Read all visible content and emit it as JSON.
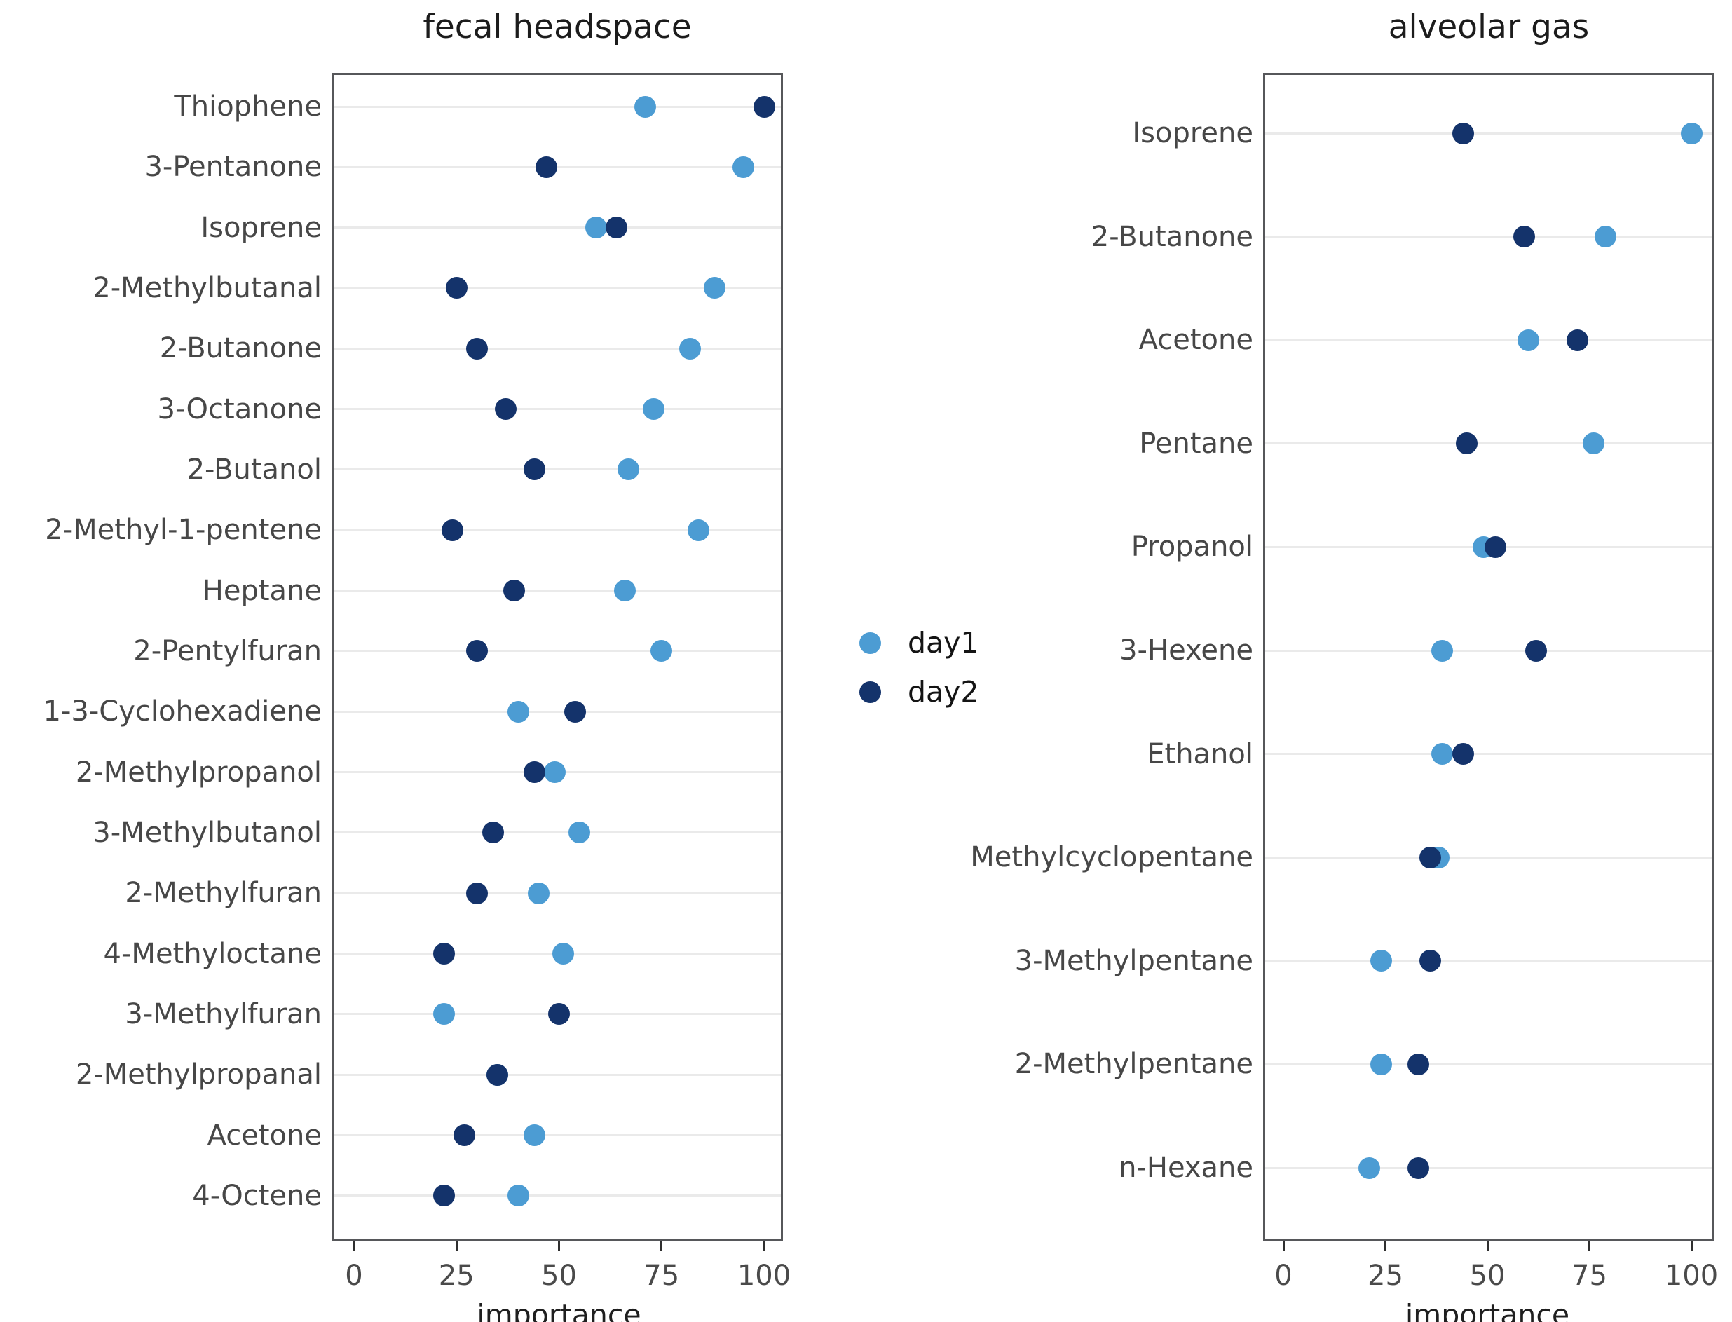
{
  "legend": {
    "items": [
      {
        "label": "day1",
        "color": "#4C9CD3"
      },
      {
        "label": "day2",
        "color": "#14336B"
      }
    ]
  },
  "chart_data": [
    {
      "type": "scatter",
      "title": "fecal headspace",
      "xlabel": "importance",
      "xlim": [
        0,
        100
      ],
      "xticks": [
        0,
        25,
        50,
        75,
        100
      ],
      "grid": "horizontal",
      "legend_position": "center-right-of-panel",
      "categories": [
        "Thiophene",
        "3-Pentanone",
        "Isoprene",
        "2-Methylbutanal",
        "2-Butanone",
        "3-Octanone",
        "2-Butanol",
        "2-Methyl-1-pentene",
        "Heptane",
        "2-Pentylfuran",
        "1-3-Cyclohexadiene",
        "2-Methylpropanol",
        "3-Methylbutanol",
        "2-Methylfuran",
        "4-Methyloctane",
        "3-Methylfuran",
        "2-Methylpropanal",
        "Acetone",
        "4-Octene"
      ],
      "series": [
        {
          "name": "day1",
          "color": "#4C9CD3",
          "values": [
            71,
            95,
            59,
            88,
            82,
            73,
            67,
            84,
            66,
            75,
            40,
            49,
            55,
            45,
            51,
            22,
            35,
            44,
            40
          ]
        },
        {
          "name": "day2",
          "color": "#14336B",
          "values": [
            100,
            47,
            64,
            25,
            30,
            37,
            44,
            24,
            39,
            30,
            54,
            44,
            34,
            30,
            22,
            50,
            35,
            27,
            22
          ]
        }
      ]
    },
    {
      "type": "scatter",
      "title": "alveolar gas",
      "xlabel": "importance",
      "xlim": [
        0,
        100
      ],
      "xticks": [
        0,
        25,
        50,
        75,
        100
      ],
      "grid": "horizontal",
      "legend_position": "center-left-of-panel",
      "categories": [
        "Isoprene",
        "2-Butanone",
        "Acetone",
        "Pentane",
        "Propanol",
        "3-Hexene",
        "Ethanol",
        "Methylcyclopentane",
        "3-Methylpentane",
        "2-Methylpentane",
        "n-Hexane"
      ],
      "series": [
        {
          "name": "day1",
          "color": "#4C9CD3",
          "values": [
            100,
            79,
            60,
            76,
            49,
            39,
            39,
            38,
            24,
            24,
            21
          ]
        },
        {
          "name": "day2",
          "color": "#14336B",
          "values": [
            44,
            59,
            72,
            45,
            52,
            62,
            44,
            36,
            36,
            33,
            33
          ]
        }
      ]
    }
  ]
}
